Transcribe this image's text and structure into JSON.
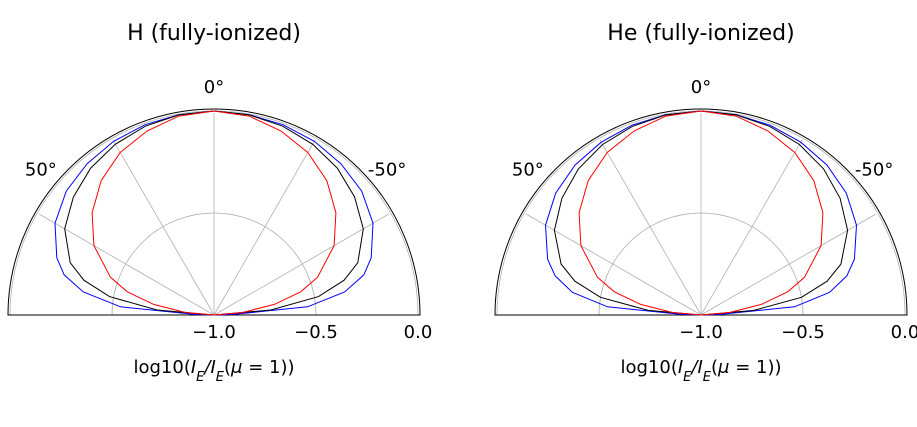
{
  "chart_data": [
    {
      "type": "polar-line",
      "title": "H (fully-ionized)",
      "xlabel": "log10(I_E/I_E(μ = 1))",
      "xlabel_parts": {
        "prefix": "log10(",
        "i1": "I",
        "s1": "E",
        "slash": "/",
        "i2": "I",
        "s2": "E",
        "mid": "(",
        "mu": "μ",
        "rest": " = 1))"
      },
      "theta_range_deg": [
        -90,
        90
      ],
      "r_range": [
        -1.0,
        0.0
      ],
      "r_ticks": [
        -1.0,
        -0.5,
        0.0
      ],
      "r_tick_labels": [
        "−1.0",
        "−0.5",
        "0.0"
      ],
      "theta_tick_labels": [
        {
          "deg": 0,
          "label": "0°"
        },
        {
          "deg": 50,
          "label": "50°"
        },
        {
          "deg": -50,
          "label": "-50°"
        }
      ],
      "grid": true,
      "series": [
        {
          "color": "#0000ff",
          "theta_deg": [
            0,
            10,
            20,
            30,
            40,
            50,
            60,
            70,
            75,
            80,
            85,
            88,
            89
          ],
          "r": [
            0.0,
            -0.003,
            -0.008,
            -0.017,
            -0.032,
            -0.055,
            -0.1,
            -0.18,
            -0.24,
            -0.35,
            -0.54,
            -0.9,
            -1.0
          ]
        },
        {
          "color": "#000000",
          "theta_deg": [
            0,
            10,
            20,
            30,
            40,
            50,
            60,
            70,
            75,
            80,
            85,
            89
          ],
          "r": [
            0.0,
            -0.004,
            -0.015,
            -0.033,
            -0.06,
            -0.1,
            -0.155,
            -0.25,
            -0.34,
            -0.48,
            -0.72,
            -1.0
          ]
        },
        {
          "color": "#ff0000",
          "theta_deg": [
            0,
            10,
            20,
            30,
            40,
            50,
            60,
            70,
            75,
            80,
            85,
            89
          ],
          "r": [
            0.0,
            -0.01,
            -0.04,
            -0.08,
            -0.14,
            -0.22,
            -0.32,
            -0.46,
            -0.56,
            -0.7,
            -0.86,
            -1.0
          ]
        }
      ]
    },
    {
      "type": "polar-line",
      "title": "He (fully-ionized)",
      "xlabel": "log10(I_E/I_E(μ = 1))",
      "xlabel_parts": {
        "prefix": "log10(",
        "i1": "I",
        "s1": "E",
        "slash": "/",
        "i2": "I",
        "s2": "E",
        "mid": "(",
        "mu": "μ",
        "rest": " = 1))"
      },
      "theta_range_deg": [
        -90,
        90
      ],
      "r_range": [
        -1.0,
        0.0
      ],
      "r_ticks": [
        -1.0,
        -0.5,
        0.0
      ],
      "r_tick_labels": [
        "−1.0",
        "−0.5",
        "0.0"
      ],
      "theta_tick_labels": [
        {
          "deg": 0,
          "label": "0°"
        },
        {
          "deg": 50,
          "label": "50°"
        },
        {
          "deg": -50,
          "label": "-50°"
        }
      ],
      "grid": true,
      "series": [
        {
          "color": "#0000ff",
          "theta_deg": [
            0,
            10,
            20,
            30,
            40,
            50,
            60,
            70,
            75,
            80,
            85,
            88,
            89
          ],
          "r": [
            0.0,
            -0.003,
            -0.01,
            -0.022,
            -0.04,
            -0.07,
            -0.12,
            -0.2,
            -0.26,
            -0.36,
            -0.54,
            -0.9,
            -1.0
          ]
        },
        {
          "color": "#000000",
          "theta_deg": [
            0,
            10,
            20,
            30,
            40,
            50,
            60,
            70,
            75,
            80,
            85,
            89
          ],
          "r": [
            0.0,
            -0.004,
            -0.016,
            -0.035,
            -0.065,
            -0.11,
            -0.17,
            -0.27,
            -0.36,
            -0.5,
            -0.74,
            -1.0
          ]
        },
        {
          "color": "#ff0000",
          "theta_deg": [
            0,
            10,
            20,
            30,
            40,
            50,
            60,
            70,
            75,
            80,
            85,
            89
          ],
          "r": [
            0.0,
            -0.01,
            -0.04,
            -0.08,
            -0.14,
            -0.22,
            -0.32,
            -0.46,
            -0.56,
            -0.7,
            -0.86,
            -1.0
          ]
        }
      ]
    }
  ]
}
